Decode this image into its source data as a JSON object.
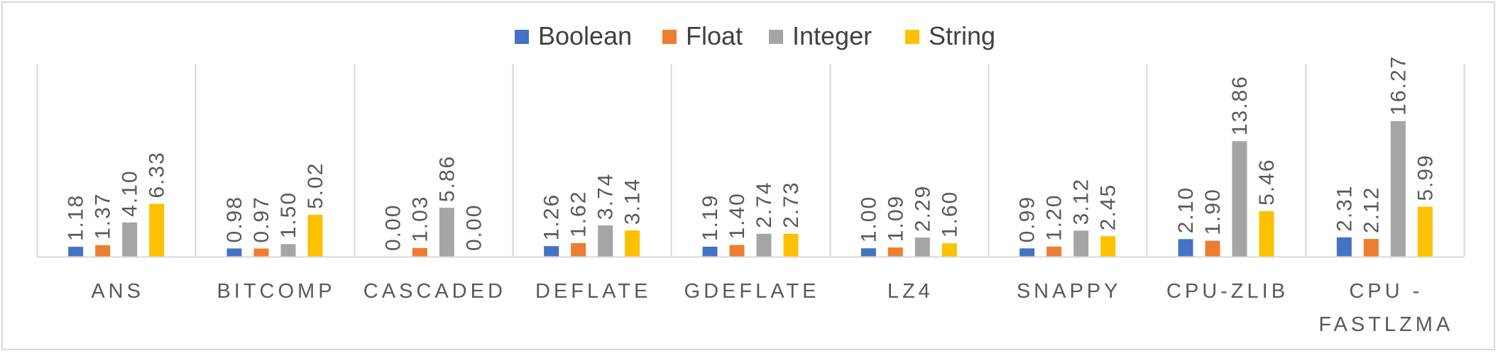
{
  "chart_data": {
    "type": "bar",
    "title": "",
    "xlabel": "",
    "ylabel": "",
    "ylim": [
      0,
      17.5
    ],
    "grid": false,
    "legend_position": "top",
    "categories": [
      "ANS",
      "BITCOMP",
      "CASCADED",
      "DEFLATE",
      "GDEFLATE",
      "LZ4",
      "SNAPPY",
      "CPU-ZLIB",
      [
        "CPU -",
        "FASTLZMA"
      ]
    ],
    "series": [
      {
        "name": "Boolean",
        "color": "#4472c4",
        "values": [
          1.18,
          0.98,
          0.0,
          1.26,
          1.19,
          1.0,
          0.99,
          2.1,
          2.31
        ],
        "labels": [
          "1.18",
          "0.98",
          "0.00",
          "1.26",
          "1.19",
          "1.00",
          "0.99",
          "2.10",
          "2.31"
        ]
      },
      {
        "name": "Float",
        "color": "#ed7d31",
        "values": [
          1.37,
          0.97,
          1.03,
          1.62,
          1.4,
          1.09,
          1.2,
          1.9,
          2.12
        ],
        "labels": [
          "1.37",
          "0.97",
          "1.03",
          "1.62",
          "1.40",
          "1.09",
          "1.20",
          "1.90",
          "2.12"
        ]
      },
      {
        "name": "Integer",
        "color": "#a5a5a5",
        "values": [
          4.1,
          1.5,
          5.86,
          3.74,
          2.74,
          2.29,
          3.12,
          13.86,
          16.27
        ],
        "labels": [
          "4.10",
          "1.50",
          "5.86",
          "3.74",
          "2.74",
          "2.29",
          "3.12",
          "13.86",
          "16.27"
        ]
      },
      {
        "name": "String",
        "color": "#ffc000",
        "values": [
          6.33,
          5.02,
          0.0,
          3.14,
          2.73,
          1.6,
          2.45,
          5.46,
          5.99
        ],
        "labels": [
          "6.33",
          "5.02",
          "0.00",
          "3.14",
          "2.73",
          "1.60",
          "2.45",
          "5.46",
          "5.99"
        ]
      }
    ]
  }
}
